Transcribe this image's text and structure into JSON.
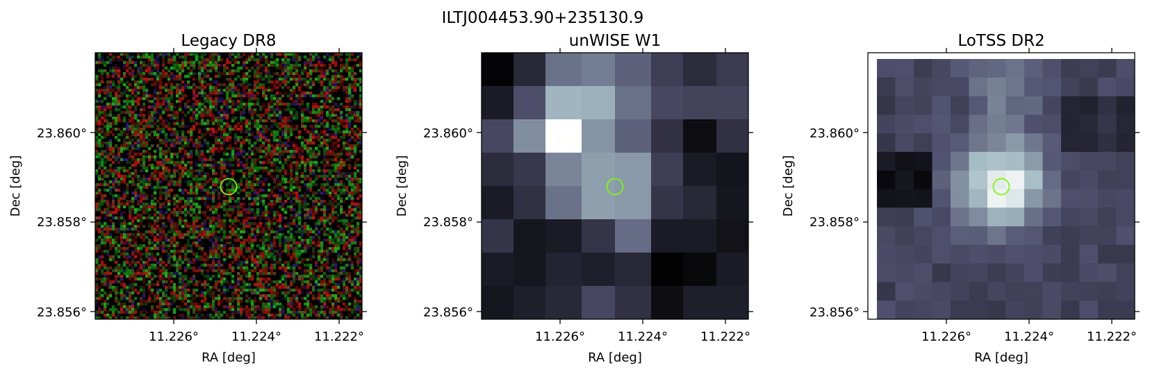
{
  "figure": {
    "title": "ILTJ004453.90+235130.9"
  },
  "panels": [
    {
      "title": "Legacy DR8",
      "xlabel": "RA [deg]",
      "ylabel": "Dec [deg]",
      "xticks": [
        "11.226°",
        "11.224°",
        "11.222°"
      ],
      "yticks": [
        "23.860°",
        "23.858°",
        "23.856°"
      ]
    },
    {
      "title": "unWISE W1",
      "xlabel": "RA [deg]",
      "ylabel": "Dec [deg]",
      "xticks": [
        "11.226°",
        "11.224°",
        "11.222°"
      ],
      "yticks": [
        "23.860°",
        "23.858°",
        "23.856°"
      ]
    },
    {
      "title": "LoTSS DR2",
      "xlabel": "RA [deg]",
      "ylabel": "Dec [deg]",
      "xticks": [
        "11.226°",
        "11.224°",
        "11.222°"
      ],
      "yticks": [
        "23.860°",
        "23.858°",
        "23.856°"
      ]
    }
  ],
  "colors": {
    "marker": "#7cfc00"
  }
}
